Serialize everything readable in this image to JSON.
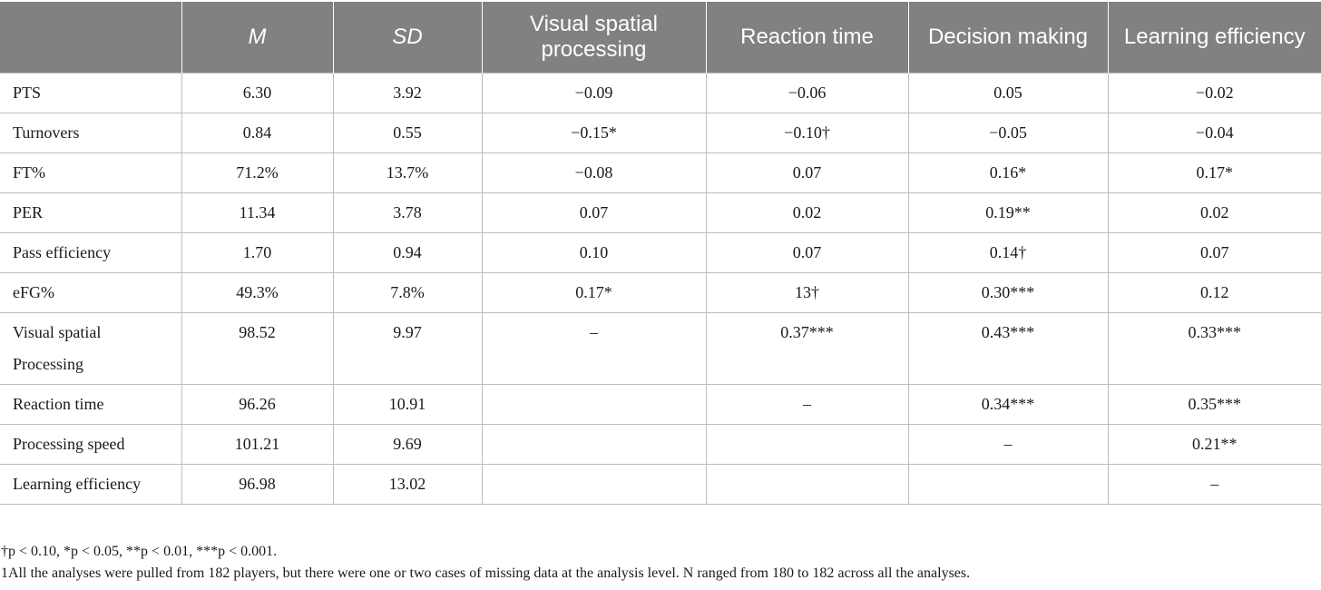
{
  "table": {
    "headers": [
      "",
      "M",
      "SD",
      "Visual spatial processing",
      "Reaction time",
      "Decision making",
      "Learning efficiency"
    ],
    "rows": [
      {
        "label": "PTS",
        "cells": [
          "6.30",
          "3.92",
          "−0.09",
          "−0.06",
          "0.05",
          "−0.02"
        ]
      },
      {
        "label": "Turnovers",
        "cells": [
          "0.84",
          "0.55",
          "−0.15*",
          "−0.10†",
          "−0.05",
          "−0.04"
        ]
      },
      {
        "label": "FT%",
        "cells": [
          "71.2%",
          "13.7%",
          "−0.08",
          "0.07",
          "0.16*",
          "0.17*"
        ]
      },
      {
        "label": "PER",
        "cells": [
          "11.34",
          "3.78",
          "0.07",
          "0.02",
          "0.19**",
          "0.02"
        ]
      },
      {
        "label": "Pass efficiency",
        "cells": [
          "1.70",
          "0.94",
          "0.10",
          "0.07",
          "0.14†",
          "0.07"
        ]
      },
      {
        "label": "eFG%",
        "cells": [
          "49.3%",
          "7.8%",
          "0.17*",
          "13†",
          "0.30***",
          "0.12"
        ]
      },
      {
        "label": "Visual spatial Processing",
        "cells": [
          "98.52",
          "9.97",
          "–",
          "0.37***",
          "0.43***",
          "0.33***"
        ]
      },
      {
        "label": "Reaction time",
        "cells": [
          "96.26",
          "10.91",
          "",
          "–",
          "0.34***",
          "0.35***"
        ]
      },
      {
        "label": "Processing speed",
        "cells": [
          "101.21",
          "9.69",
          "",
          "",
          "–",
          "0.21**"
        ]
      },
      {
        "label": "Learning efficiency",
        "cells": [
          "96.98",
          "13.02",
          "",
          "",
          "",
          "–"
        ]
      }
    ]
  },
  "notes": {
    "line1": "†p < 0.10, *p < 0.05, **p < 0.01, ***p < 0.001.",
    "line2": "1All the analyses were pulled from 182 players, but there were one or two cases of missing data at the analysis level. N ranged from 180 to 182 across all the analyses."
  }
}
